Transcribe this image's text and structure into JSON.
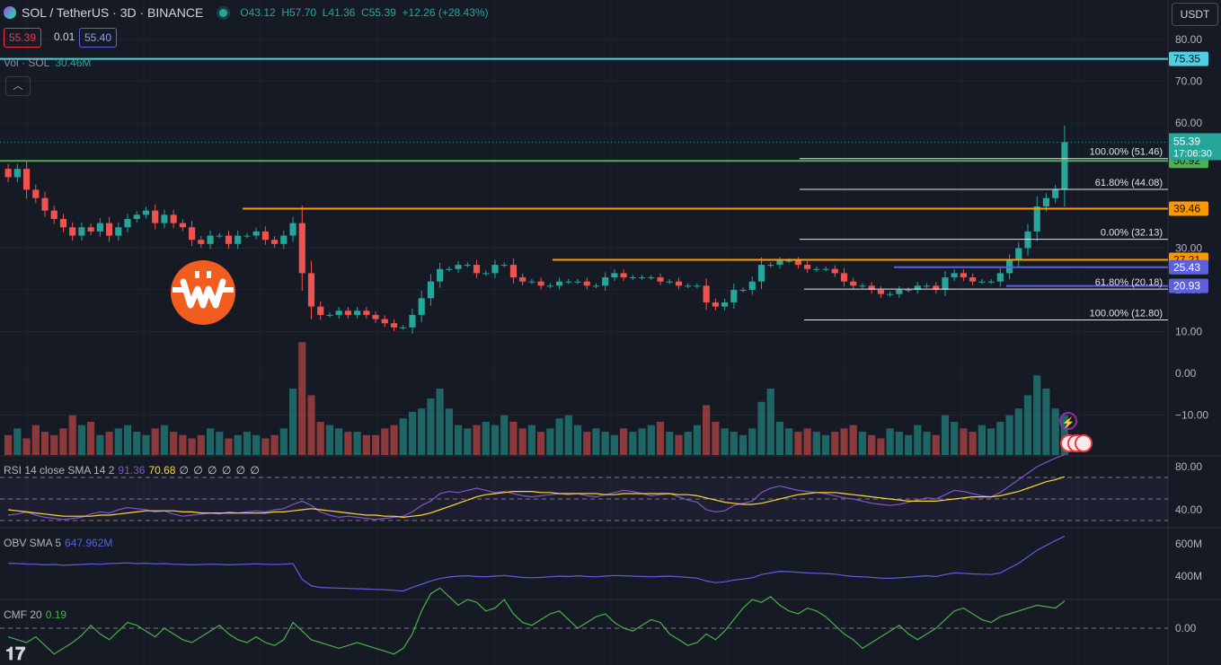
{
  "header": {
    "symbol": "SOL / TetherUS · 3D · BINANCE",
    "open": "O43.12",
    "high": "H57.70",
    "low": "L41.36",
    "close": "C55.39",
    "change": "+12.26 (+28.43%)",
    "bid": "55.39",
    "spread": "0.01",
    "ask": "55.40",
    "currency": "USDT"
  },
  "volume_label": {
    "name": "Vol · SOL",
    "value": "30.46M"
  },
  "indicators": {
    "rsi": {
      "name": "RSI 14 close SMA 14 2",
      "value1": "91.36",
      "value2": "70.68",
      "extra": "∅ ∅ ∅ ∅ ∅ ∅"
    },
    "obv": {
      "name": "OBV SMA 5",
      "value": "647.962M"
    },
    "cmf": {
      "name": "CMF 20",
      "value": "0.19"
    }
  },
  "colors": {
    "up": "#26a69a",
    "down": "#ef5350",
    "bg": "#161a25",
    "rsi": "#7e57c2",
    "rsi_sma": "#fdd835",
    "obv": "#5b5fe0",
    "cmf": "#4caf50"
  },
  "chart_data": {
    "type": "candlestick",
    "y_axis_ticks": [
      "80.00",
      "70.00",
      "60.00",
      "30.00",
      "20.00",
      "10.00",
      "0.00",
      "−10.00"
    ],
    "rsi_ticks": [
      "80.00",
      "40.00"
    ],
    "obv_ticks": [
      "600M",
      "400M"
    ],
    "cmf_ticks": [
      "0.00"
    ],
    "current_price": "55.39",
    "countdown": "17:06:30",
    "horizontal_levels": [
      {
        "label": "75.35",
        "value": 75.35,
        "color": "#4dd0e1"
      },
      {
        "label": "50.92",
        "value": 50.92,
        "color": "#4caf50"
      },
      {
        "label": "39.46",
        "value": 39.46,
        "color": "#ff9800"
      },
      {
        "label": "27.21",
        "value": 27.21,
        "color": "#ff9800"
      },
      {
        "label": "25.43",
        "value": 25.43,
        "color": "#5b5fe0"
      },
      {
        "label": "20.93",
        "value": 20.93,
        "color": "#5b5fe0"
      }
    ],
    "fib_levels": [
      {
        "label": "100.00% (51.46)",
        "value": 51.46
      },
      {
        "label": "61.80% (44.08)",
        "value": 44.08
      },
      {
        "label": "0.00% (32.13)",
        "value": 32.13
      },
      {
        "label": "61.80% (20.18)",
        "value": 20.18
      },
      {
        "label": "100.00% (12.80)",
        "value": 12.8
      }
    ],
    "close_path": [
      47,
      49,
      44,
      42,
      39,
      37,
      35,
      33,
      35,
      34,
      36,
      33,
      35,
      37,
      38,
      39,
      36,
      38,
      36,
      35,
      32,
      31,
      33,
      33,
      31,
      33,
      33,
      34,
      32,
      31,
      33,
      36,
      24,
      16,
      14,
      14,
      15,
      14,
      15,
      14,
      13,
      12,
      11,
      11,
      14,
      18,
      22,
      25,
      25,
      26,
      26,
      24,
      24,
      26,
      26,
      23,
      22,
      22,
      21,
      21,
      22,
      22,
      22,
      21,
      21,
      23,
      24,
      23,
      23,
      23,
      23,
      22,
      22,
      21,
      21,
      21,
      17,
      16,
      17,
      20,
      20,
      22,
      26,
      26,
      27,
      27,
      26,
      25,
      25,
      25,
      24,
      22,
      21,
      21,
      20,
      19,
      19,
      20,
      20,
      21,
      21,
      20,
      23,
      24,
      23,
      22,
      22,
      22,
      24,
      27,
      30,
      34,
      40,
      42,
      44,
      55.39
    ],
    "volume_path": [
      6,
      8,
      5,
      9,
      7,
      6,
      8,
      12,
      9,
      10,
      6,
      7,
      8,
      9,
      7,
      6,
      8,
      9,
      7,
      6,
      5,
      6,
      8,
      7,
      5,
      6,
      7,
      6,
      5,
      6,
      8,
      20,
      34,
      18,
      10,
      9,
      8,
      7,
      7,
      6,
      6,
      8,
      9,
      11,
      13,
      14,
      17,
      20,
      14,
      9,
      8,
      9,
      10,
      9,
      12,
      10,
      8,
      9,
      7,
      8,
      11,
      12,
      9,
      7,
      8,
      7,
      6,
      8,
      7,
      8,
      9,
      10,
      7,
      6,
      7,
      9,
      15,
      10,
      8,
      7,
      6,
      8,
      16,
      20,
      10,
      8,
      7,
      8,
      7,
      6,
      7,
      8,
      9,
      7,
      6,
      5,
      8,
      7,
      6,
      9,
      7,
      6,
      12,
      10,
      8,
      7,
      9,
      8,
      10,
      12,
      14,
      18,
      24,
      20,
      14,
      12
    ],
    "rsi_path": [
      35,
      36,
      38,
      35,
      33,
      32,
      31,
      32,
      33,
      36,
      38,
      37,
      40,
      42,
      41,
      40,
      38,
      39,
      36,
      34,
      35,
      36,
      37,
      36,
      38,
      37,
      38,
      39,
      38,
      40,
      41,
      45,
      48,
      44,
      38,
      35,
      33,
      34,
      33,
      32,
      31,
      32,
      33,
      34,
      38,
      44,
      48,
      55,
      57,
      56,
      58,
      60,
      58,
      56,
      57,
      55,
      53,
      52,
      53,
      54,
      55,
      54,
      55,
      53,
      52,
      54,
      56,
      58,
      57,
      55,
      53,
      54,
      55,
      52,
      49,
      47,
      40,
      38,
      39,
      44,
      46,
      48,
      56,
      60,
      62,
      60,
      58,
      57,
      56,
      55,
      53,
      51,
      50,
      48,
      46,
      45,
      44,
      45,
      47,
      49,
      51,
      50,
      54,
      58,
      57,
      55,
      53,
      52,
      56,
      62,
      68,
      74,
      80,
      84,
      88,
      91.36
    ],
    "rsi_sma_path": [
      40,
      39,
      38,
      37,
      36,
      35,
      34,
      34,
      34,
      34,
      35,
      35,
      36,
      37,
      38,
      39,
      39,
      39,
      39,
      38,
      38,
      37,
      37,
      37,
      37,
      37,
      37,
      37,
      37,
      38,
      38,
      39,
      40,
      41,
      40,
      39,
      38,
      37,
      36,
      35,
      35,
      34,
      34,
      33,
      34,
      35,
      37,
      40,
      43,
      46,
      49,
      52,
      54,
      55,
      56,
      57,
      57,
      57,
      56,
      56,
      55,
      55,
      55,
      55,
      55,
      54,
      54,
      55,
      55,
      55,
      55,
      55,
      55,
      54,
      54,
      53,
      51,
      49,
      47,
      46,
      45,
      45,
      46,
      48,
      50,
      52,
      54,
      55,
      56,
      56,
      56,
      55,
      54,
      53,
      52,
      51,
      50,
      49,
      48,
      48,
      48,
      48,
      49,
      50,
      51,
      52,
      52,
      52,
      53,
      55,
      57,
      60,
      63,
      66,
      68,
      70.68
    ],
    "obv_path": [
      480,
      478,
      475,
      474,
      470,
      472,
      468,
      470,
      472,
      476,
      474,
      478,
      480,
      482,
      478,
      480,
      476,
      478,
      474,
      472,
      470,
      472,
      474,
      473,
      470,
      472,
      474,
      476,
      474,
      472,
      474,
      478,
      380,
      340,
      330,
      328,
      326,
      324,
      322,
      320,
      318,
      316,
      312,
      308,
      330,
      350,
      370,
      385,
      395,
      400,
      402,
      398,
      396,
      400,
      404,
      398,
      392,
      390,
      392,
      396,
      400,
      398,
      402,
      398,
      396,
      400,
      404,
      402,
      400,
      398,
      396,
      398,
      400,
      396,
      392,
      388,
      370,
      360,
      365,
      376,
      382,
      390,
      410,
      420,
      430,
      428,
      424,
      420,
      418,
      416,
      412,
      404,
      398,
      396,
      392,
      388,
      386,
      390,
      394,
      398,
      402,
      398,
      410,
      420,
      418,
      414,
      412,
      410,
      420,
      450,
      480,
      520,
      560,
      590,
      620,
      647.962
    ],
    "cmf_path": [
      -0.06,
      -0.08,
      -0.1,
      -0.06,
      -0.12,
      -0.18,
      -0.14,
      -0.1,
      -0.05,
      0.02,
      -0.04,
      -0.08,
      -0.02,
      0.04,
      0.02,
      -0.02,
      -0.06,
      0.0,
      -0.04,
      -0.08,
      -0.1,
      -0.06,
      -0.02,
      0.02,
      -0.04,
      -0.08,
      -0.1,
      -0.06,
      -0.1,
      -0.12,
      -0.08,
      0.04,
      -0.02,
      -0.08,
      -0.1,
      -0.12,
      -0.14,
      -0.12,
      -0.1,
      -0.12,
      -0.14,
      -0.16,
      -0.18,
      -0.14,
      -0.04,
      0.12,
      0.24,
      0.28,
      0.22,
      0.16,
      0.2,
      0.18,
      0.12,
      0.14,
      0.2,
      0.1,
      0.04,
      0.02,
      0.06,
      0.1,
      0.12,
      0.06,
      0.0,
      0.04,
      0.08,
      0.1,
      0.04,
      0.0,
      -0.02,
      0.02,
      0.06,
      0.04,
      -0.04,
      -0.08,
      -0.12,
      -0.1,
      -0.04,
      -0.08,
      -0.02,
      0.06,
      0.14,
      0.2,
      0.18,
      0.22,
      0.16,
      0.12,
      0.1,
      0.14,
      0.12,
      0.08,
      0.02,
      -0.04,
      -0.08,
      -0.14,
      -0.1,
      -0.06,
      -0.02,
      0.02,
      -0.04,
      -0.08,
      -0.04,
      0.0,
      0.06,
      0.12,
      0.14,
      0.1,
      0.06,
      0.04,
      0.08,
      0.1,
      0.12,
      0.14,
      0.16,
      0.15,
      0.14,
      0.19
    ]
  }
}
